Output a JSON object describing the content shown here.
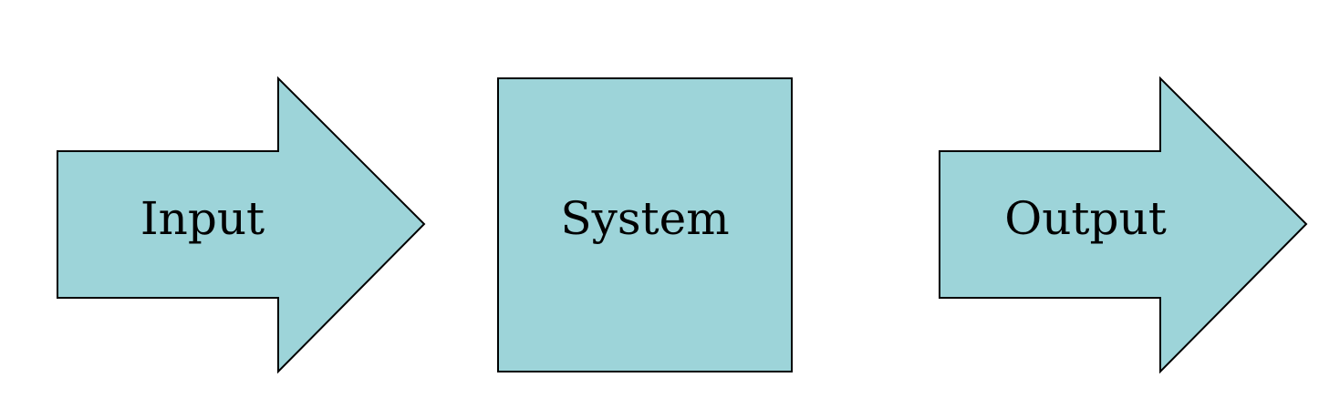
{
  "colors": {
    "fill": "#9dd4d9",
    "stroke": "#000000",
    "text": "#000000",
    "background": "#ffffff"
  },
  "nodes": [
    {
      "id": "input",
      "shape": "right-arrow",
      "label": "Input"
    },
    {
      "id": "system",
      "shape": "square",
      "label": "System"
    },
    {
      "id": "output",
      "shape": "right-arrow",
      "label": "Output"
    }
  ]
}
